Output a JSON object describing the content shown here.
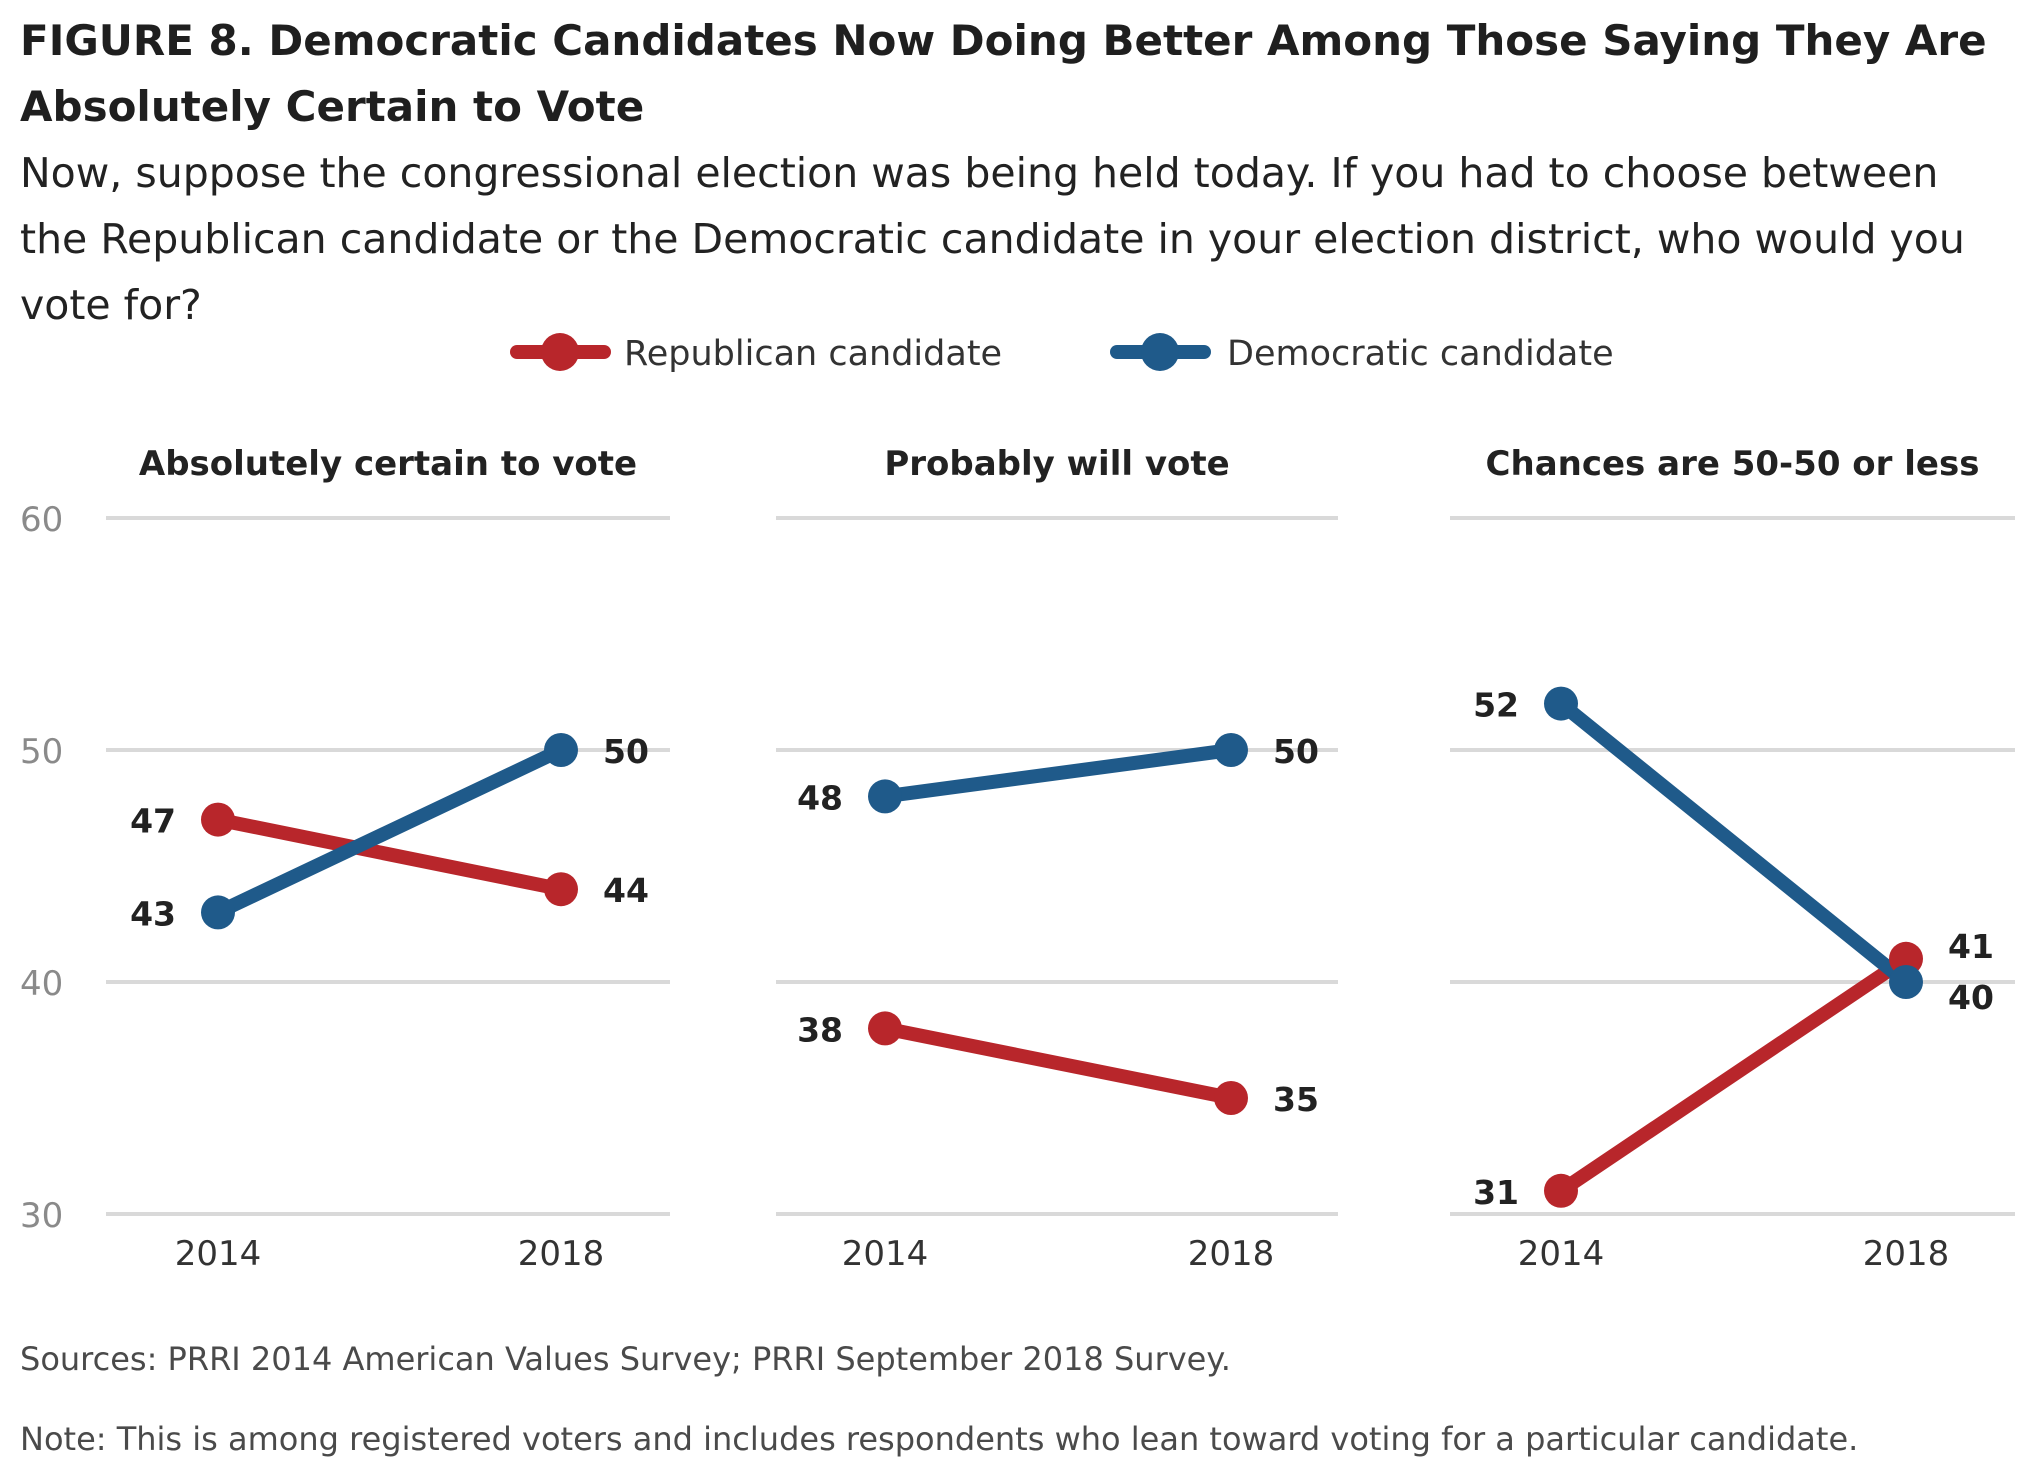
{
  "title": "FIGURE 8.  Democratic Candidates Now Doing Better Among Those Saying They Are Absolutely Certain to Vote",
  "subtitle": "Now, suppose the congressional election was being held today. If you had to choose between the Republican candidate or the Democratic candidate in your election district, who would you vote for?",
  "source": "Sources: PRRI 2014 American Values Survey; PRRI September 2018 Survey.",
  "note": "Note: This is among registered voters and includes respondents who lean toward voting for a particular candidate.",
  "colors": {
    "republican": "#b8262b",
    "democratic": "#1f5a8a",
    "grid": "#d9d9d9",
    "axis_text": "#8a8a8a"
  },
  "chart_data": {
    "type": "line",
    "legend": [
      "Republican candidate",
      "Democratic candidate"
    ],
    "legend_position": "top-center",
    "ylim": [
      30,
      60
    ],
    "yticks": [
      60,
      50,
      40,
      30
    ],
    "grid": true,
    "panels": [
      {
        "title": "Absolutely certain to vote",
        "x": [
          "2014",
          "2018"
        ],
        "series": [
          {
            "name": "Republican candidate",
            "values": [
              47,
              44
            ]
          },
          {
            "name": "Democratic candidate",
            "values": [
              43,
              50
            ]
          }
        ]
      },
      {
        "title": "Probably will vote",
        "x": [
          "2014",
          "2018"
        ],
        "series": [
          {
            "name": "Republican candidate",
            "values": [
              38,
              35
            ]
          },
          {
            "name": "Democratic candidate",
            "values": [
              48,
              50
            ]
          }
        ]
      },
      {
        "title": "Chances are 50-50 or less",
        "x": [
          "2014",
          "2018"
        ],
        "series": [
          {
            "name": "Republican candidate",
            "values": [
              31,
              41
            ]
          },
          {
            "name": "Democratic candidate",
            "values": [
              52,
              40
            ]
          }
        ]
      }
    ]
  }
}
